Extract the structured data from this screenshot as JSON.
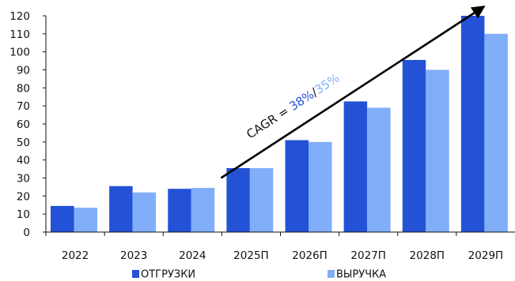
{
  "chart_data": {
    "type": "bar",
    "categories": [
      "2022",
      "2023",
      "2024",
      "2025П",
      "2026П",
      "2027П",
      "2028П",
      "2029П"
    ],
    "series": [
      {
        "name": "ОТГРУЗКИ",
        "color": "#2352d6",
        "values": [
          14.5,
          25.5,
          24,
          35.5,
          51,
          72.5,
          95.5,
          120
        ]
      },
      {
        "name": "ВЫРУЧКА",
        "color": "#80aef9",
        "values": [
          13.5,
          22,
          24.5,
          35.5,
          50,
          69,
          90,
          110
        ]
      }
    ],
    "ylim": [
      0,
      120
    ],
    "yticks": [
      0,
      10,
      20,
      30,
      40,
      50,
      60,
      70,
      80,
      90,
      100,
      110,
      120
    ],
    "grid": false,
    "legend_position": "bottom",
    "annotation": {
      "prefix": "CAGR = ",
      "value1": "38%",
      "separator": "/",
      "value2": "35%",
      "color1": "#2352d6",
      "color2": "#80aef9",
      "arrow": {
        "from": {
          "x": "2024",
          "y": 30
        },
        "to": {
          "x": "2029П",
          "y": 124
        }
      }
    }
  }
}
